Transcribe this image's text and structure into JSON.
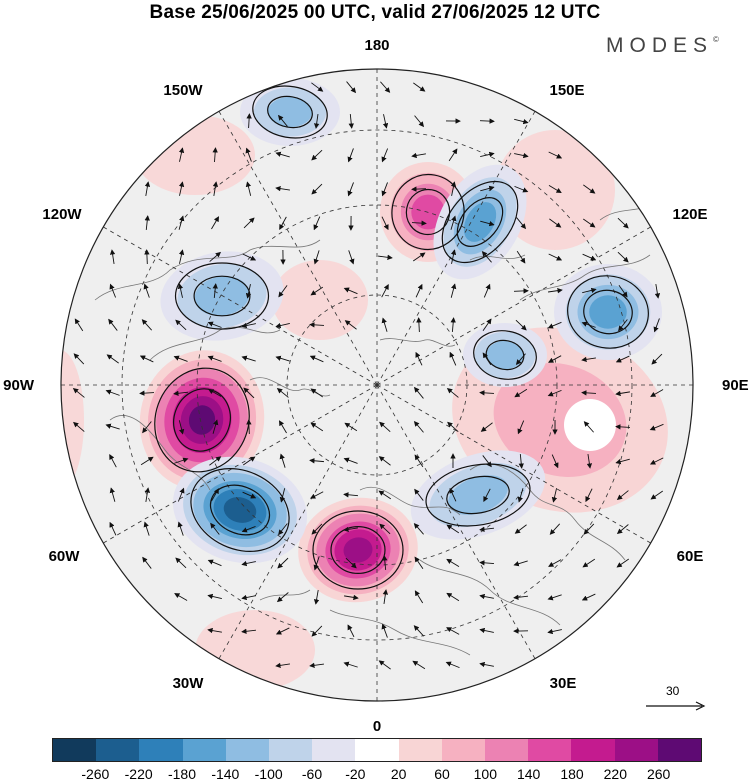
{
  "header": {
    "title": "Base 25/06/2025 00 UTC, valid 27/06/2025 12 UTC",
    "brand": "MODES",
    "brand_mark": "©"
  },
  "map": {
    "projection": "north-polar-stereographic",
    "longitude_labels": [
      "180",
      "150E",
      "120E",
      "90E",
      "60E",
      "30E",
      "0",
      "30W",
      "60W",
      "90W",
      "120W",
      "150W"
    ],
    "background_color": "#efefef",
    "anomalies": [
      {
        "id": "pos-north-atlantic",
        "sign": "positive",
        "peak_value": 240
      },
      {
        "id": "pos-hudson-bay",
        "sign": "positive",
        "peak_value": 260
      },
      {
        "id": "pos-east-siberian-sea",
        "sign": "positive",
        "peak_value": 140
      },
      {
        "id": "pos-central-siberia",
        "sign": "positive",
        "peak_value": 60
      },
      {
        "id": "neg-labrador-sea",
        "sign": "negative",
        "peak_value": -220
      },
      {
        "id": "neg-kamchatka",
        "sign": "negative",
        "peak_value": -160
      },
      {
        "id": "neg-lake-baikal",
        "sign": "negative",
        "peak_value": -140
      },
      {
        "id": "neg-scandinavia",
        "sign": "negative",
        "peak_value": -100
      },
      {
        "id": "neg-alaska-yukon",
        "sign": "negative",
        "peak_value": -100
      },
      {
        "id": "neg-gulf-of-alaska",
        "sign": "negative",
        "peak_value": -100
      },
      {
        "id": "neg-kara-sea",
        "sign": "negative",
        "peak_value": -100
      }
    ]
  },
  "vector_reference": {
    "label": "30"
  },
  "colorbar": {
    "colors": [
      "#113a5c",
      "#1c5e8f",
      "#2e80b9",
      "#5aa2d2",
      "#8fbde2",
      "#bfd3ea",
      "#e3e3f1",
      "#ffffff",
      "#f8d5d5",
      "#f6b1c1",
      "#ec82b3",
      "#e04aa3",
      "#c41b8f",
      "#9c0f86",
      "#5e0a73"
    ],
    "tick_labels": [
      "-260",
      "-220",
      "-180",
      "-140",
      "-100",
      "-60",
      "-20",
      "20",
      "60",
      "100",
      "140",
      "180",
      "220",
      "260"
    ]
  }
}
